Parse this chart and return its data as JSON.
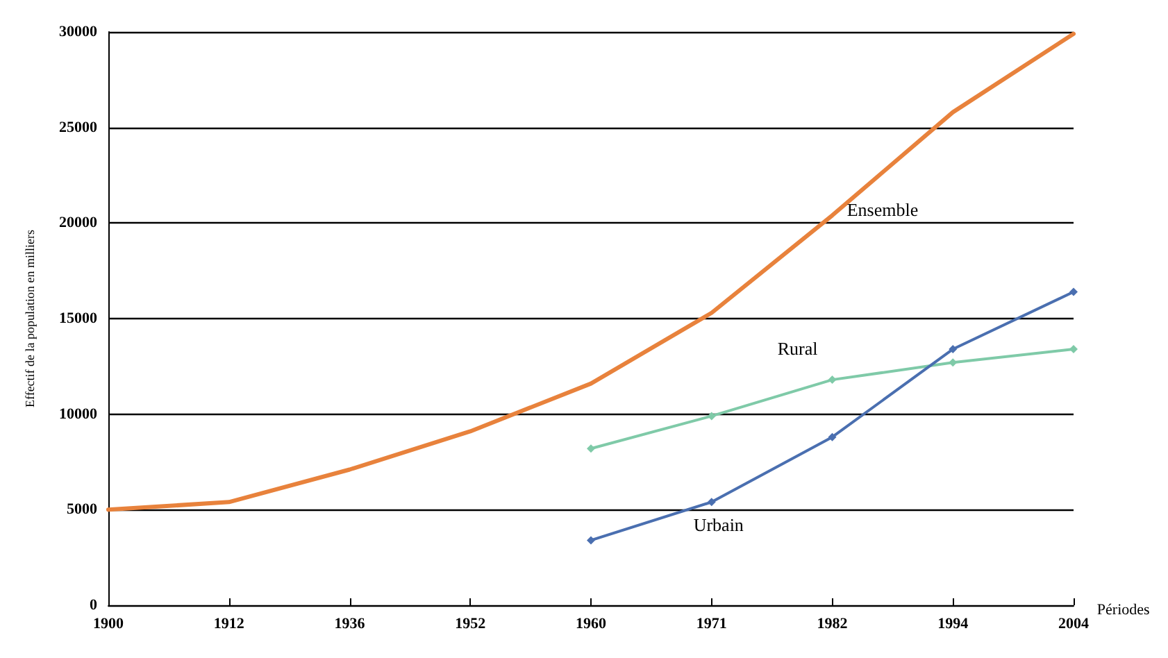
{
  "chart_data": {
    "type": "line",
    "xlabel": "Périodes",
    "ylabel": "Effectif de la population en milliers",
    "categories": [
      "1900",
      "1912",
      "1936",
      "1952",
      "1960",
      "1971",
      "1982",
      "1994",
      "2004"
    ],
    "ylim": [
      0,
      30000
    ],
    "yticks": [
      0,
      5000,
      10000,
      15000,
      20000,
      25000,
      30000
    ],
    "grid": "y",
    "legend": false,
    "line_style": "solid",
    "series": [
      {
        "name": "Ensemble",
        "color": "#e8823c",
        "marker": "none",
        "values": [
          5000,
          5400,
          7100,
          9100,
          11600,
          15300,
          20400,
          25800,
          29900
        ]
      },
      {
        "name": "Rural",
        "color": "#7fcaa8",
        "marker": "diamond",
        "values": [
          null,
          null,
          null,
          null,
          8200,
          9900,
          11800,
          12700,
          13400
        ]
      },
      {
        "name": "Urbain",
        "color": "#4a6fb0",
        "marker": "diamond",
        "values": [
          null,
          null,
          null,
          null,
          3400,
          5400,
          8800,
          13400,
          16400
        ]
      }
    ]
  }
}
